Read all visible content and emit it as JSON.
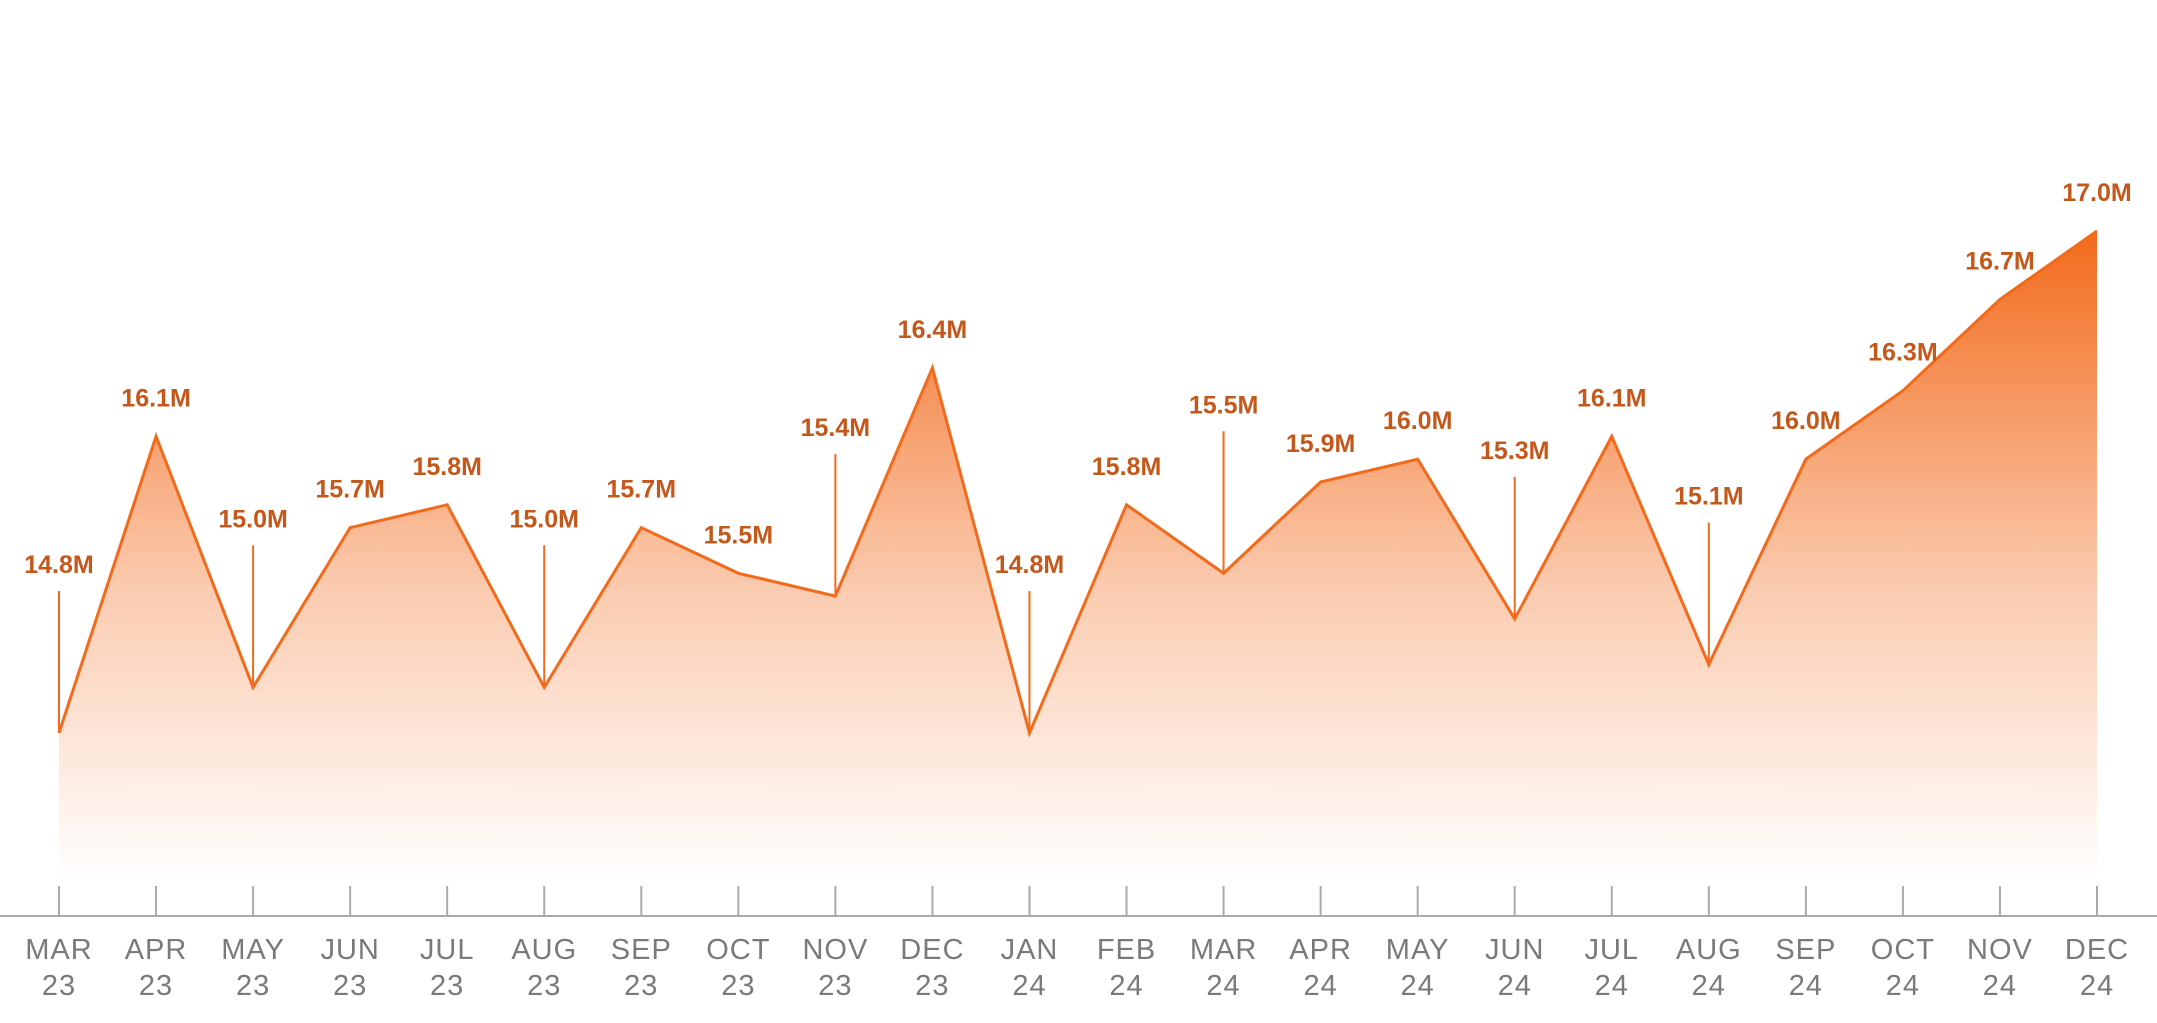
{
  "chart_data": {
    "type": "area",
    "categories": [
      "MAR 23",
      "APR 23",
      "MAY 23",
      "JUN 23",
      "JUL 23",
      "AUG 23",
      "SEP 23",
      "OCT 23",
      "NOV 23",
      "DEC 23",
      "JAN 24",
      "FEB 24",
      "MAR 24",
      "APR 24",
      "MAY 24",
      "JUN 24",
      "JUL 24",
      "AUG 24",
      "SEP 24",
      "OCT 24",
      "NOV 24",
      "DEC 24"
    ],
    "values": [
      14.8,
      16.1,
      15.0,
      15.7,
      15.8,
      15.0,
      15.7,
      15.5,
      15.4,
      16.4,
      14.8,
      15.8,
      15.5,
      15.9,
      16.0,
      15.3,
      16.1,
      15.1,
      16.0,
      16.3,
      16.7,
      17.0
    ],
    "value_labels": [
      "14.8M",
      "16.1M",
      "15.0M",
      "15.7M",
      "15.8M",
      "15.0M",
      "15.7M",
      "15.5M",
      "15.4M",
      "16.4M",
      "14.8M",
      "15.8M",
      "15.5M",
      "15.9M",
      "16.0M",
      "15.3M",
      "16.1M",
      "15.1M",
      "16.0M",
      "16.3M",
      "16.7M",
      "17.0M"
    ],
    "color": "#f26a1b"
  }
}
